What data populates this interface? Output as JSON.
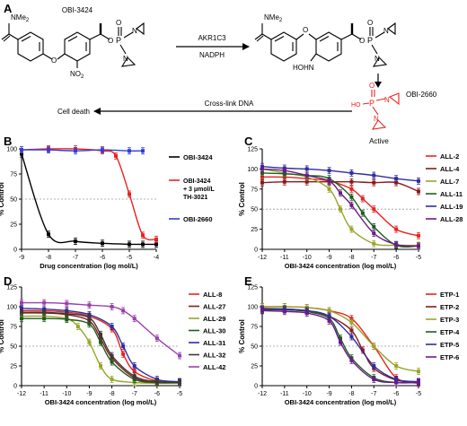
{
  "panels": {
    "A": {
      "letter": "A",
      "compound1": "OBI-3424",
      "compound2": "OBI-2660",
      "enzyme": "AKR1C3",
      "cofactor": "NADPH",
      "crosslink": "Cross-link DNA",
      "cell_death": "Cell death",
      "active": "Active",
      "nme2": "NMe",
      "nme2_sub": "2",
      "no2": "NO",
      "no2_sub": "2",
      "hohn": "HOHN",
      "ho": "HO",
      "p": "P",
      "o": "O",
      "n": "N"
    },
    "B": {
      "letter": "B"
    },
    "C": {
      "letter": "C"
    },
    "D": {
      "letter": "D"
    },
    "E": {
      "letter": "E"
    }
  },
  "chart_data": [
    {
      "panel": "B",
      "type": "line",
      "title": "",
      "xlabel": "Drug concentration (log mol/L)",
      "ylabel": "% Control",
      "xlim": [
        -9,
        -4
      ],
      "ylim": [
        0,
        100
      ],
      "xticks": [
        "-9",
        "-8",
        "-7",
        "-6",
        "-5",
        "-4"
      ],
      "yticks": [
        "0",
        "25",
        "50",
        "75",
        "100"
      ],
      "reference_line": 50,
      "legend_position": "right",
      "series": [
        {
          "name": "OBI-3424",
          "color": "#000000",
          "marker": "square",
          "x": [
            -9,
            -8,
            -7,
            -6,
            -5,
            -4.5,
            -4
          ],
          "y": [
            95,
            15,
            8,
            6,
            5,
            5,
            5
          ]
        },
        {
          "name": "OBI-3424 + 3 μmol/L TH-3021",
          "legend_lines": [
            "OBI-3424",
            "+ 3 μmol/L",
            "TH-3021"
          ],
          "color": "#e8231f",
          "marker": "square",
          "x": [
            -9,
            -8,
            -7,
            -6,
            -5.5,
            -5,
            -4.5,
            -4
          ],
          "y": [
            99,
            100,
            100,
            98,
            93,
            55,
            14,
            10
          ]
        },
        {
          "name": "OBI-2660",
          "color": "#2f3fd6",
          "marker": "square",
          "x": [
            -9,
            -8,
            -7,
            -6,
            -5,
            -4.5
          ],
          "y": [
            99,
            99,
            98,
            99,
            98,
            98
          ]
        }
      ]
    },
    {
      "panel": "C",
      "type": "line",
      "title": "",
      "xlabel": "OBI-3424 concentration (log mol/L)",
      "ylabel": "% Control",
      "xlim": [
        -12,
        -5
      ],
      "ylim": [
        0,
        125
      ],
      "xticks": [
        "-12",
        "-11",
        "-10",
        "-9",
        "-8",
        "-7",
        "-6",
        "-5"
      ],
      "yticks": [
        "0",
        "25",
        "50",
        "75",
        "100",
        "125"
      ],
      "reference_line": 50,
      "legend_position": "right",
      "series": [
        {
          "name": "ALL-2",
          "color": "#e8231f",
          "x": [
            -12,
            -11,
            -10,
            -9,
            -8,
            -7.5,
            -7,
            -6,
            -5
          ],
          "y": [
            90,
            90,
            88,
            85,
            75,
            63,
            50,
            25,
            17
          ]
        },
        {
          "name": "ALL-4",
          "color": "#8b1a1a",
          "x": [
            -12,
            -11,
            -10,
            -9,
            -8,
            -7,
            -6,
            -5
          ],
          "y": [
            83,
            84,
            84,
            84,
            84,
            83,
            83,
            72
          ]
        },
        {
          "name": "ALL-7",
          "color": "#9aa52a",
          "x": [
            -12,
            -11,
            -10,
            -9,
            -8.5,
            -8,
            -7,
            -6,
            -5
          ],
          "y": [
            100,
            95,
            90,
            75,
            50,
            25,
            7,
            5,
            5
          ]
        },
        {
          "name": "ALL-11",
          "color": "#1e5e1e",
          "x": [
            -12,
            -11,
            -10,
            -9,
            -8,
            -7.5,
            -7,
            -6,
            -5
          ],
          "y": [
            95,
            94,
            92,
            88,
            65,
            45,
            28,
            5,
            4
          ]
        },
        {
          "name": "ALL-19",
          "color": "#2e2ea0",
          "x": [
            -12,
            -11,
            -10,
            -9,
            -8,
            -7,
            -6,
            -5
          ],
          "y": [
            103,
            101,
            100,
            98,
            95,
            92,
            88,
            85
          ]
        },
        {
          "name": "ALL-28",
          "color": "#6a1a8a",
          "x": [
            -12,
            -11,
            -10,
            -9,
            -8.5,
            -8,
            -7,
            -6,
            -5
          ],
          "y": [
            100,
            98,
            92,
            85,
            70,
            55,
            20,
            6,
            4
          ]
        }
      ]
    },
    {
      "panel": "D",
      "type": "line",
      "title": "",
      "xlabel": "OBI-3424 concentration (log mol/L)",
      "ylabel": "% Control",
      "xlim": [
        -12,
        -5
      ],
      "ylim": [
        0,
        125
      ],
      "xticks": [
        "-12",
        "-11",
        "-10",
        "-9",
        "-8",
        "-7",
        "-6",
        "-5"
      ],
      "yticks": [
        "0",
        "25",
        "50",
        "75",
        "100",
        "125"
      ],
      "reference_line": 50,
      "legend_position": "right",
      "series": [
        {
          "name": "ALL-8",
          "color": "#e8231f",
          "x": [
            -12,
            -11,
            -10,
            -9,
            -8,
            -7.5,
            -7,
            -6,
            -5
          ],
          "y": [
            95,
            95,
            93,
            88,
            72,
            40,
            18,
            6,
            5
          ]
        },
        {
          "name": "ALL-27",
          "color": "#8b1a1a",
          "x": [
            -12,
            -11,
            -10,
            -9,
            -8.5,
            -8,
            -7,
            -6,
            -5
          ],
          "y": [
            92,
            92,
            90,
            82,
            60,
            35,
            10,
            4,
            4
          ]
        },
        {
          "name": "ALL-29",
          "color": "#9aa52a",
          "x": [
            -12,
            -11,
            -10,
            -9.5,
            -9,
            -8.5,
            -8,
            -7,
            -6,
            -5
          ],
          "y": [
            88,
            88,
            85,
            75,
            55,
            25,
            8,
            4,
            3,
            3
          ]
        },
        {
          "name": "ALL-30",
          "color": "#1e5e1e",
          "x": [
            -12,
            -11,
            -10,
            -9,
            -8.5,
            -8,
            -7,
            -6,
            -5
          ],
          "y": [
            85,
            85,
            84,
            78,
            55,
            30,
            8,
            4,
            4
          ]
        },
        {
          "name": "ALL-31",
          "color": "#2e2ea0",
          "x": [
            -12,
            -11,
            -10,
            -9,
            -8,
            -7.5,
            -7,
            -6,
            -5
          ],
          "y": [
            98,
            97,
            95,
            90,
            75,
            50,
            25,
            8,
            5
          ]
        },
        {
          "name": "ALL-32",
          "color": "#3a3a3a",
          "x": [
            -12,
            -11,
            -10,
            -9,
            -8.5,
            -8,
            -7,
            -6,
            -5
          ],
          "y": [
            93,
            93,
            91,
            86,
            65,
            38,
            12,
            5,
            4
          ]
        },
        {
          "name": "ALL-42",
          "color": "#9a3fb0",
          "x": [
            -12,
            -11,
            -10,
            -9,
            -8,
            -7.5,
            -7,
            -6,
            -5
          ],
          "y": [
            105,
            105,
            104,
            102,
            100,
            95,
            85,
            60,
            38
          ]
        }
      ]
    },
    {
      "panel": "E",
      "type": "line",
      "title": "",
      "xlabel": "OBI-3424 concentration (log mol/L)",
      "ylabel": "% Control",
      "xlim": [
        -12,
        -5
      ],
      "ylim": [
        0,
        125
      ],
      "xticks": [
        "-12",
        "-11",
        "-10",
        "-9",
        "-8",
        "-7",
        "-6",
        "-5"
      ],
      "yticks": [
        "0",
        "25",
        "50",
        "75",
        "100",
        "125"
      ],
      "reference_line": 50,
      "legend_position": "right",
      "series": [
        {
          "name": "ETP-1",
          "color": "#e8231f",
          "x": [
            -12,
            -11,
            -10,
            -9,
            -8,
            -7,
            -6,
            -5
          ],
          "y": [
            100,
            100,
            99,
            95,
            85,
            50,
            10,
            3
          ]
        },
        {
          "name": "ETP-2",
          "color": "#8b1a1a",
          "x": [
            -12,
            -11,
            -10,
            -9,
            -8,
            -7.5,
            -7,
            -6,
            -5
          ],
          "y": [
            98,
            97,
            95,
            88,
            70,
            45,
            22,
            7,
            5
          ]
        },
        {
          "name": "ETP-3",
          "color": "#9aa52a",
          "x": [
            -12,
            -11,
            -10,
            -9,
            -8,
            -7,
            -6,
            -5
          ],
          "y": [
            100,
            100,
            99,
            95,
            80,
            50,
            25,
            18
          ]
        },
        {
          "name": "ETP-4",
          "color": "#1e5e1e",
          "x": [
            -12,
            -11,
            -10,
            -9,
            -8.5,
            -8,
            -7,
            -6,
            -5
          ],
          "y": [
            96,
            96,
            94,
            85,
            60,
            35,
            10,
            4,
            4
          ]
        },
        {
          "name": "ETP-5",
          "color": "#2e2ea0",
          "x": [
            -12,
            -11,
            -10,
            -9,
            -8,
            -7,
            -6,
            -5
          ],
          "y": [
            97,
            97,
            95,
            88,
            62,
            25,
            8,
            5
          ]
        },
        {
          "name": "ETP-6",
          "color": "#6a1a8a",
          "x": [
            -12,
            -11,
            -10,
            -9,
            -8.5,
            -8,
            -7,
            -6,
            -5
          ],
          "y": [
            95,
            94,
            92,
            82,
            55,
            32,
            8,
            4,
            4
          ]
        }
      ]
    }
  ]
}
